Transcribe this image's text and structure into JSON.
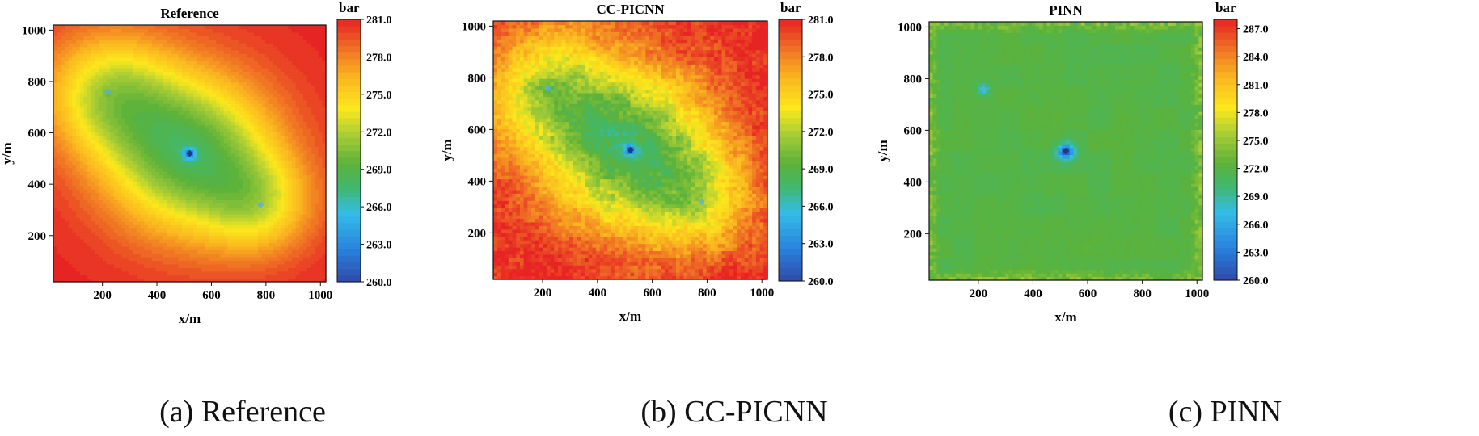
{
  "chart_data": [
    {
      "type": "heatmap",
      "id": "reference",
      "title": "Reference",
      "caption": "(a) Reference",
      "xlabel": "x/m",
      "ylabel": "y/m",
      "xlim": [
        20,
        1020
      ],
      "ylim": [
        20,
        1020
      ],
      "xticks": [
        200,
        400,
        600,
        800,
        1000
      ],
      "yticks": [
        200,
        400,
        600,
        800,
        1000
      ],
      "colorbar": {
        "label": "bar",
        "min": 260.0,
        "max": 281.0,
        "ticks": [
          "260.0",
          "263.0",
          "266.0",
          "269.0",
          "272.0",
          "275.0",
          "278.0",
          "281.0"
        ]
      },
      "style": "contour",
      "field": {
        "base": 281.0,
        "wells": [
          {
            "x": 220,
            "y": 760,
            "depth": 7.5,
            "width": 170
          },
          {
            "x": 520,
            "y": 520,
            "depth": 12.0,
            "width": 220
          },
          {
            "x": 780,
            "y": 320,
            "depth": 5.5,
            "width": 140
          },
          {
            "x": 520,
            "y": 520,
            "depth": 6.0,
            "width": 18
          },
          {
            "x": 220,
            "y": 760,
            "depth": 1.5,
            "width": 10
          }
        ]
      },
      "wells_marked": [
        {
          "x": 220,
          "y": 760
        },
        {
          "x": 520,
          "y": 520
        },
        {
          "x": 780,
          "y": 320
        }
      ]
    },
    {
      "type": "heatmap",
      "id": "ccpicnn",
      "title": "CC-PICNN",
      "caption": "(b) CC-PICNN",
      "xlabel": "x/m",
      "ylabel": "y/m",
      "xlim": [
        20,
        1020
      ],
      "ylim": [
        20,
        1020
      ],
      "xticks": [
        200,
        400,
        600,
        800,
        1000
      ],
      "yticks": [
        200,
        400,
        600,
        800,
        1000
      ],
      "colorbar": {
        "label": "bar",
        "min": 260.0,
        "max": 281.0,
        "ticks": [
          "260.0",
          "263.0",
          "266.0",
          "269.0",
          "272.0",
          "275.0",
          "278.0",
          "281.0"
        ]
      },
      "style": "noisy",
      "field": {
        "base": 281.0,
        "wells": [
          {
            "x": 220,
            "y": 760,
            "depth": 7.5,
            "width": 170
          },
          {
            "x": 520,
            "y": 520,
            "depth": 12.0,
            "width": 220
          },
          {
            "x": 780,
            "y": 320,
            "depth": 5.5,
            "width": 140
          },
          {
            "x": 520,
            "y": 520,
            "depth": 6.0,
            "width": 18
          },
          {
            "x": 220,
            "y": 760,
            "depth": 1.5,
            "width": 10
          }
        ]
      },
      "wells_marked": [
        {
          "x": 220,
          "y": 760
        },
        {
          "x": 520,
          "y": 520
        },
        {
          "x": 780,
          "y": 320
        }
      ]
    },
    {
      "type": "heatmap",
      "id": "pinn",
      "title": "PINN",
      "caption": "(c) PINN",
      "xlabel": "x/m",
      "ylabel": "y/m",
      "xlim": [
        20,
        1020
      ],
      "ylim": [
        20,
        1020
      ],
      "xticks": [
        200,
        400,
        600,
        800,
        1000
      ],
      "yticks": [
        200,
        400,
        600,
        800,
        1000
      ],
      "colorbar": {
        "label": "bar",
        "min": 260.0,
        "max": 288.0,
        "ticks": [
          "260.0",
          "263.0",
          "266.0",
          "269.0",
          "272.0",
          "275.0",
          "278.0",
          "281.0",
          "284.0",
          "287.0"
        ]
      },
      "style": "flat",
      "field": {
        "base": 272.0,
        "wells": [
          {
            "x": 220,
            "y": 760,
            "depth": 6.0,
            "width": 14
          },
          {
            "x": 520,
            "y": 520,
            "depth": 11.0,
            "width": 22
          }
        ]
      },
      "wells_marked": [
        {
          "x": 220,
          "y": 760
        },
        {
          "x": 520,
          "y": 520
        }
      ]
    }
  ]
}
